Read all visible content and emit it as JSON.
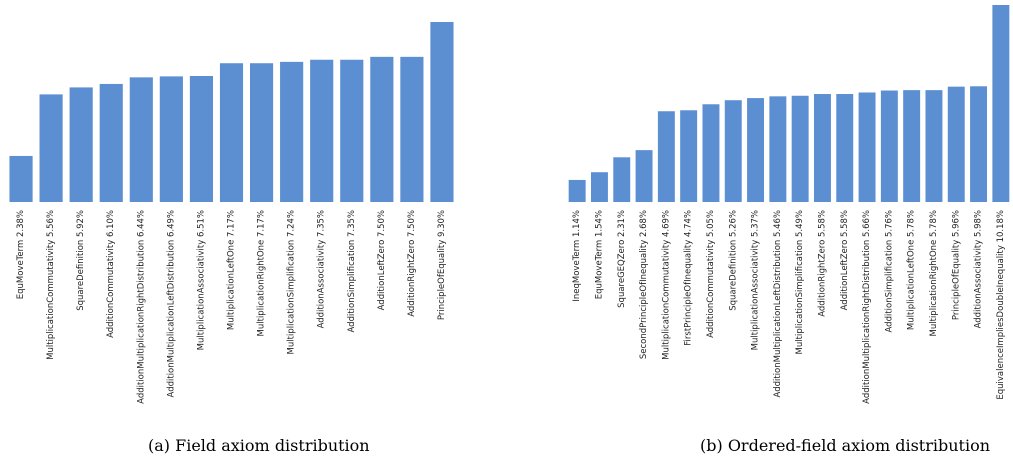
{
  "chart_data": [
    {
      "type": "bar",
      "categories": [
        "EquMoveTerm 2.38%",
        "MultiplicationCommutativity 5.56%",
        "SquareDefinition 5.92%",
        "AdditionCommutativity 6.10%",
        "AdditionMultiplicationRightDistribution 6.44%",
        "AdditionMultiplicationLeftDistribution 6.49%",
        "MultiplicationAssociativity 6.51%",
        "MultiplicationLeftOne 7.17%",
        "MultiplicationRightOne 7.17%",
        "MultiplicationSimplification 7.24%",
        "AdditionAssociativity 7.35%",
        "AdditionSimplification 7.35%",
        "AdditionLeftZero 7.50%",
        "AdditionRightZero 7.50%",
        "PrincipleOfEquality 9.30%"
      ],
      "values": [
        2.38,
        5.56,
        5.92,
        6.1,
        6.44,
        6.49,
        6.51,
        7.17,
        7.17,
        7.24,
        7.35,
        7.35,
        7.5,
        7.5,
        9.3
      ],
      "ylim": [
        0,
        9.3
      ],
      "grid": false,
      "color": "#5b8fd1",
      "caption": "(a) Field axiom distribution"
    },
    {
      "type": "bar",
      "categories": [
        "IneqMoveTerm 1.14%",
        "EquMoveTerm 1.54%",
        "SquareGEQZero 2.31%",
        "SecondPrincipleOfInequality 2.68%",
        "MultiplicationCommutativity 4.69%",
        "FirstPrincipleOfInequality 4.74%",
        "AdditionCommutativity 5.05%",
        "SquareDefinition 5.26%",
        "MultiplicationAssociativity 5.37%",
        "AdditionMultiplicationLeftDistribution 5.46%",
        "MultiplicationSimplification 5.49%",
        "AdditionRightZero 5.58%",
        "AdditionLeftZero 5.58%",
        "AdditionMultiplicationRightDistribution 5.66%",
        "AdditionSimplification 5.76%",
        "MultiplicationLeftOne 5.78%",
        "MultiplicationRightOne 5.78%",
        "PrincipleOfEquality 5.96%",
        "AdditionAssociativity 5.98%",
        "EquivalenceImpliesDoubleInequality 10.18%"
      ],
      "values": [
        1.14,
        1.54,
        2.31,
        2.68,
        4.69,
        4.74,
        5.05,
        5.26,
        5.37,
        5.46,
        5.49,
        5.58,
        5.58,
        5.66,
        5.76,
        5.78,
        5.78,
        5.96,
        5.98,
        10.18
      ],
      "ylim": [
        0,
        10.18
      ],
      "grid": false,
      "color": "#5b8fd1",
      "caption": "(b) Ordered-field axiom distribution"
    }
  ]
}
